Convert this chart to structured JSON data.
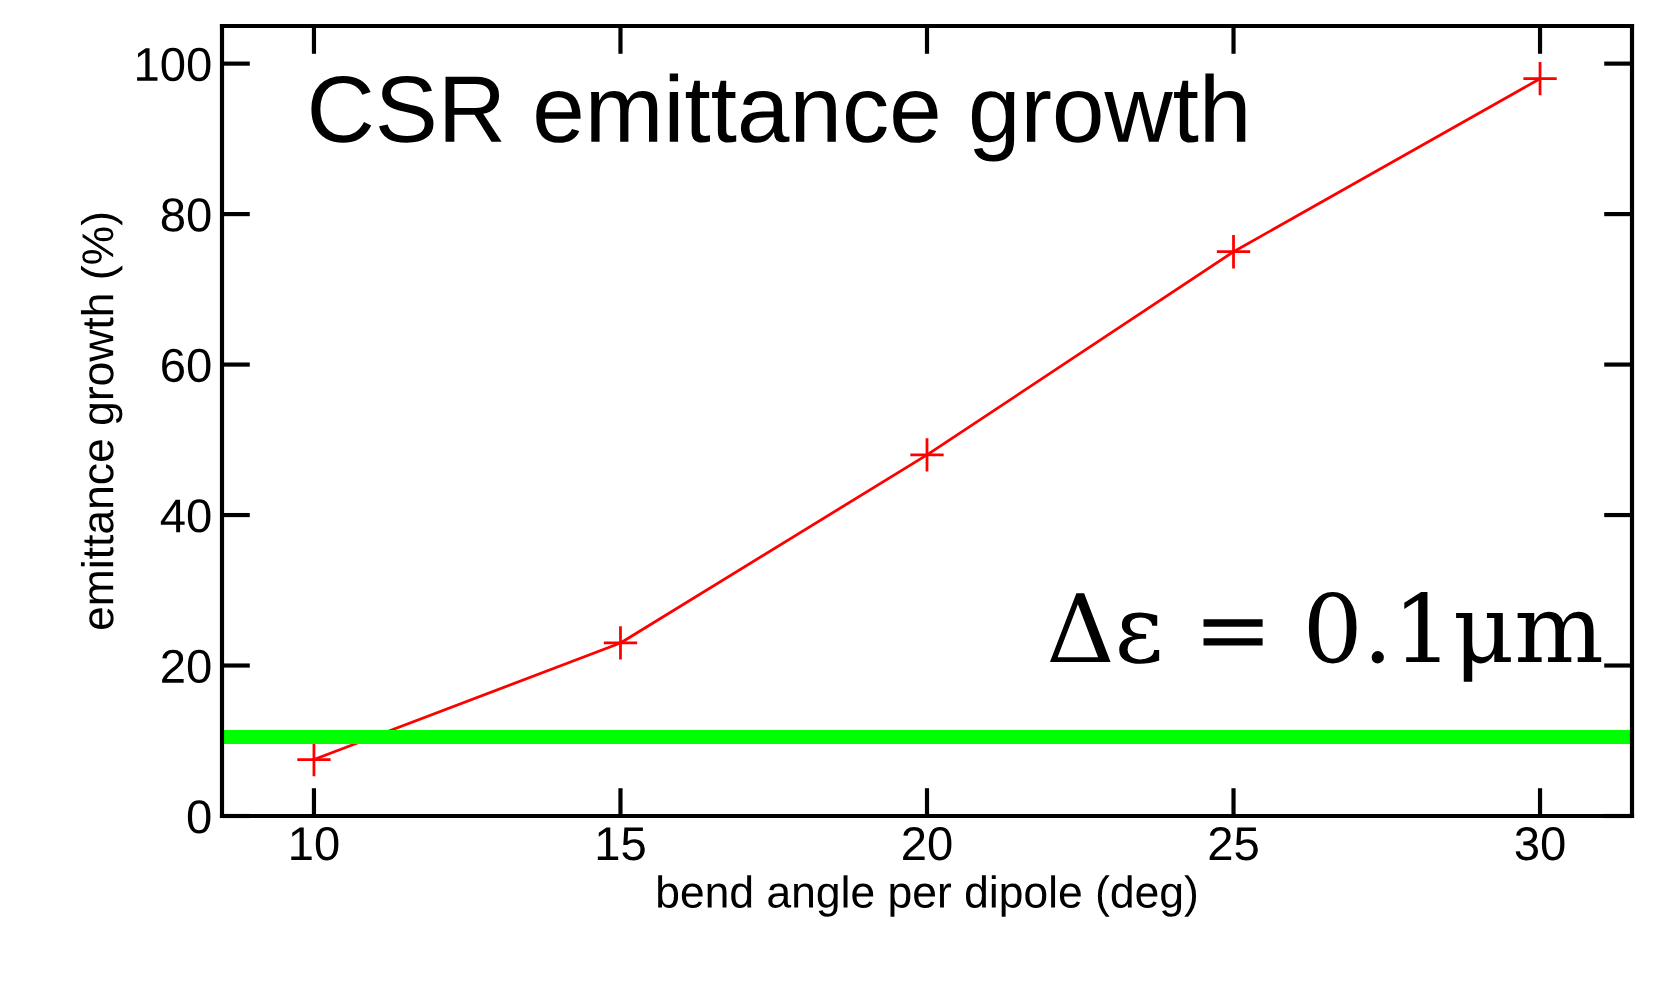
{
  "chart_data": {
    "type": "line",
    "xlabel": "bend angle per dipole (deg)",
    "ylabel": "emittance growth (%)",
    "x": [
      10,
      15,
      20,
      25,
      30
    ],
    "series": [
      {
        "color": "#ff0000",
        "values": [
          7.5,
          23,
          48,
          75,
          98
        ]
      }
    ],
    "xlim": [
      8.5,
      31.5
    ],
    "xticks": [
      10,
      15,
      20,
      25,
      30
    ],
    "ylim": [
      0,
      105
    ],
    "yticks": [
      0,
      20,
      40,
      60,
      80,
      100
    ],
    "marker": "cross",
    "line_style": "solid",
    "grid": false,
    "legend": false,
    "ref_lines": [
      {
        "axis": "y",
        "value": 10.5,
        "color": "#00ff00",
        "line_style": "solid"
      }
    ],
    "annotations": [
      "CSR emittance growth",
      "Δε = 0.1μm"
    ]
  }
}
